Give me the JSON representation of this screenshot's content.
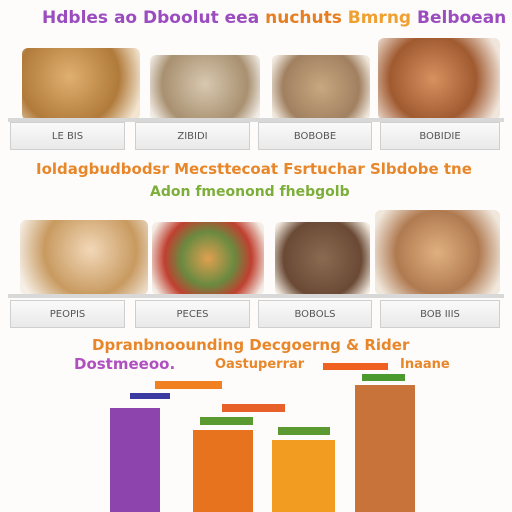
{
  "header": {
    "title_parts": [
      "Hdbles ao Dboolut eea",
      "nuchuts",
      "Bmrng",
      "Belboean"
    ]
  },
  "row1": {
    "labels": [
      "LE BIS",
      "ZIBIDI",
      "BOBOBE",
      "BOBIDIE"
    ]
  },
  "middle": {
    "line1": "Ioldagbudbodsr Mecsttecoat Fsrtuchar Slbdobe tne",
    "line2": "Adon fmeonond fhebgolb"
  },
  "row2": {
    "labels": [
      "PEOPIS",
      "PECES",
      "BOBOLS",
      "BOB IIIS"
    ]
  },
  "bottom": {
    "line1": "Dpranbnoounding Decgoerng & Rider",
    "line2_parts": [
      "Dostmeeoo.",
      "Oastuperrar",
      "Inaane"
    ]
  },
  "chart_data": {
    "type": "bar",
    "values": [
      104,
      82,
      72,
      127
    ],
    "colors": [
      "#8e44ad",
      "#e8731f",
      "#f39c22",
      "#c8733a"
    ]
  }
}
